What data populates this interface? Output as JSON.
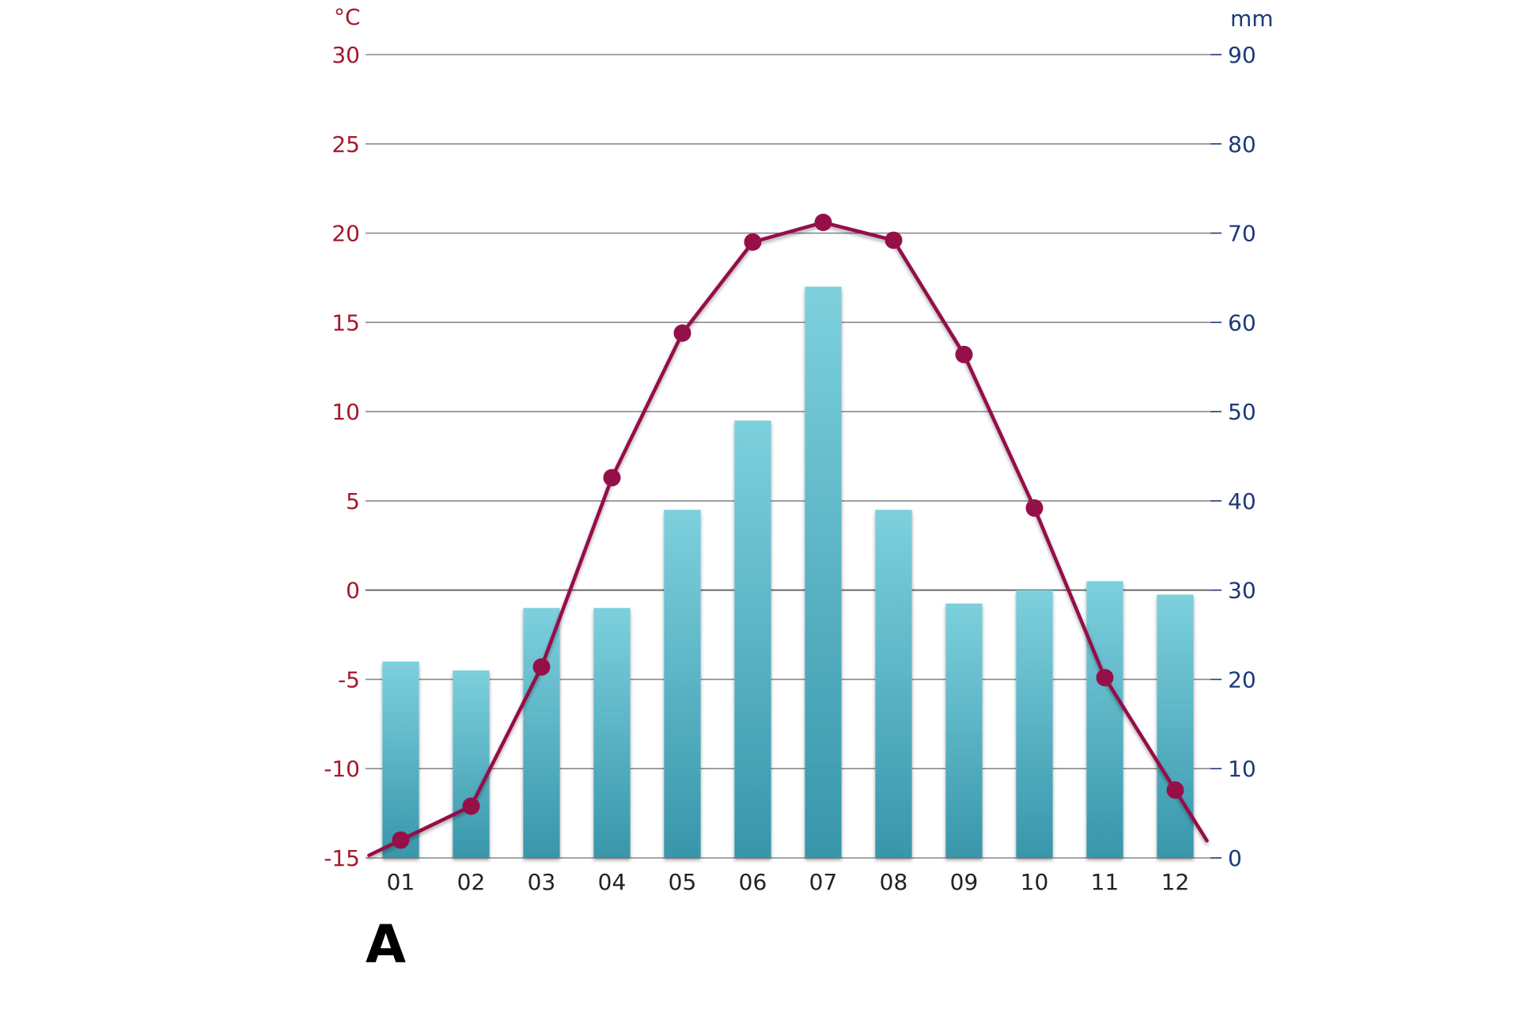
{
  "chart_data": {
    "type": "bar",
    "panel_label": "A",
    "categories": [
      "01",
      "02",
      "03",
      "04",
      "05",
      "06",
      "07",
      "08",
      "09",
      "10",
      "11",
      "12"
    ],
    "series": [
      {
        "kind": "bar",
        "axis": "right",
        "values": [
          22,
          21,
          28,
          28,
          39,
          49,
          64,
          39,
          28.5,
          30,
          31,
          29.5
        ]
      },
      {
        "kind": "line",
        "axis": "left",
        "values": [
          -14,
          -12.1,
          -4.3,
          6.3,
          14.4,
          19.5,
          20.6,
          19.6,
          13.2,
          4.6,
          -4.9,
          -11.2
        ]
      }
    ],
    "y_left": {
      "unit": "°C",
      "range": [
        -15,
        30
      ],
      "ticks": [
        "30",
        "25",
        "20",
        "15",
        "10",
        "5",
        "0",
        "-5",
        "-10",
        "-15"
      ]
    },
    "y_right": {
      "unit": "mm",
      "range": [
        0,
        90
      ],
      "ticks": [
        "90",
        "80",
        "70",
        "60",
        "50",
        "40",
        "30",
        "20",
        "10",
        "0"
      ]
    },
    "grid": true,
    "colors": {
      "bar_top": "#7dd0dd",
      "bar_bottom": "#3896ab",
      "line": "#951049",
      "left_axis_text": "#a5182c",
      "right_axis_text": "#1c3a7a",
      "grid": "#8a8a8a"
    }
  }
}
